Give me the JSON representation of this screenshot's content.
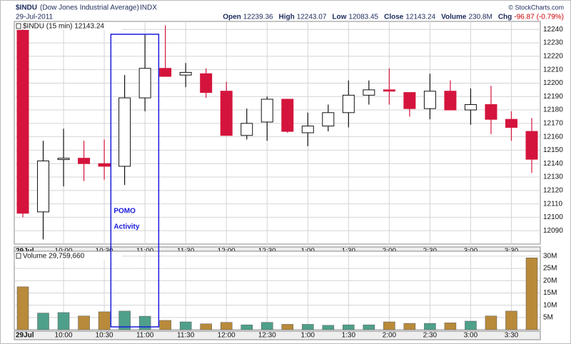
{
  "header": {
    "symbol": "$INDU",
    "name": "(Dow Jones Industrial Average)",
    "exchange": "INDX",
    "date": "29-Jul-2011",
    "copyright": "© StockCharts.com",
    "stats": [
      {
        "label": "Open",
        "value": "12239.36"
      },
      {
        "label": "High",
        "value": "12243.07"
      },
      {
        "label": "Low",
        "value": "12083.45"
      },
      {
        "label": "Close",
        "value": "12143.24"
      },
      {
        "label": "Volume",
        "value": "230.8M"
      },
      {
        "label": "Chg",
        "value": "-96.87",
        "extra": "(-0.79%)"
      }
    ]
  },
  "chart_data": [
    {
      "type": "candlestick",
      "title": "$INDU (15 min) 12143.24",
      "categories": [
        "29Jul",
        null,
        "10:00",
        null,
        "10:30",
        null,
        "11:00",
        null,
        "11:30",
        null,
        "12:00",
        null,
        "12:30",
        null,
        "1:00",
        null,
        "1:30",
        null,
        "2:00",
        null,
        "2:30",
        null,
        "3:00",
        null,
        "3:30",
        null
      ],
      "open": [
        12239.36,
        12104,
        12143,
        12144,
        12140,
        12138,
        12189,
        12211,
        12206,
        12207,
        12194,
        12161,
        12171,
        12188,
        12163,
        12168,
        12178,
        12191,
        12195,
        12193,
        12181,
        12194,
        12180,
        12184,
        12173,
        12164
      ],
      "high": [
        12240,
        12157,
        12166,
        12157,
        12158,
        12206,
        12236,
        12243.07,
        12215,
        12211,
        12201,
        12181,
        12190,
        12188,
        12178,
        12184,
        12202,
        12202,
        12211,
        12193,
        12207,
        12202,
        12196,
        12198,
        12179,
        12174
      ],
      "low": [
        12100,
        12083.45,
        12123,
        12127,
        12128,
        12124,
        12179,
        12205,
        12197,
        12189,
        12161,
        12158,
        12157,
        12163,
        12153,
        12164,
        12167,
        12184,
        12184,
        12175,
        12173,
        12180,
        12169,
        12162,
        12157,
        12133
      ],
      "close": [
        12103,
        12142,
        12144,
        12140,
        12138,
        12189,
        12211,
        12205,
        12208,
        12193,
        12161,
        12170,
        12188,
        12164,
        12168,
        12178,
        12191,
        12195,
        12194,
        12181,
        12194,
        12180,
        12184,
        12173,
        12167,
        12143.24
      ],
      "up_color": "#ffffff",
      "down_color": "#d4143c",
      "ylim": [
        12080,
        12246
      ],
      "yticks": [
        12090,
        12100,
        12110,
        12120,
        12130,
        12140,
        12150,
        12160,
        12170,
        12180,
        12190,
        12200,
        12210,
        12220,
        12230,
        12240
      ],
      "grid": true,
      "annotation": {
        "lines": [
          "POMO",
          "Activity"
        ],
        "from": 5,
        "to": 6,
        "color": "#1a1adc"
      }
    },
    {
      "type": "bar",
      "title": "Volume 29,759,660",
      "categories": [
        "29Jul",
        null,
        "10:00",
        null,
        "10:30",
        null,
        "11:00",
        null,
        "11:30",
        null,
        "12:00",
        null,
        "12:30",
        null,
        "1:00",
        null,
        "1:30",
        null,
        "2:00",
        null,
        "2:30",
        null,
        "3:00",
        null,
        "3:30",
        null
      ],
      "values": [
        17.5,
        6.8,
        7.0,
        5.6,
        7.3,
        7.6,
        5.5,
        3.8,
        3.2,
        2.4,
        3.0,
        2.0,
        3.0,
        2.2,
        2.2,
        1.8,
        2.0,
        2.0,
        3.2,
        2.6,
        2.6,
        2.8,
        3.5,
        5.6,
        7.6,
        29.3
      ],
      "up_color": "#4fa08b",
      "down_color": "#b88a3a",
      "ylim": [
        0,
        32
      ],
      "yticks": [
        {
          "value": 5,
          "label": "5M"
        },
        {
          "value": 10,
          "label": "10M"
        },
        {
          "value": 15,
          "label": "15M"
        },
        {
          "value": 20,
          "label": "20M"
        },
        {
          "value": 25,
          "label": "25M"
        },
        {
          "value": 30,
          "label": "30M"
        }
      ],
      "grid": true
    }
  ]
}
